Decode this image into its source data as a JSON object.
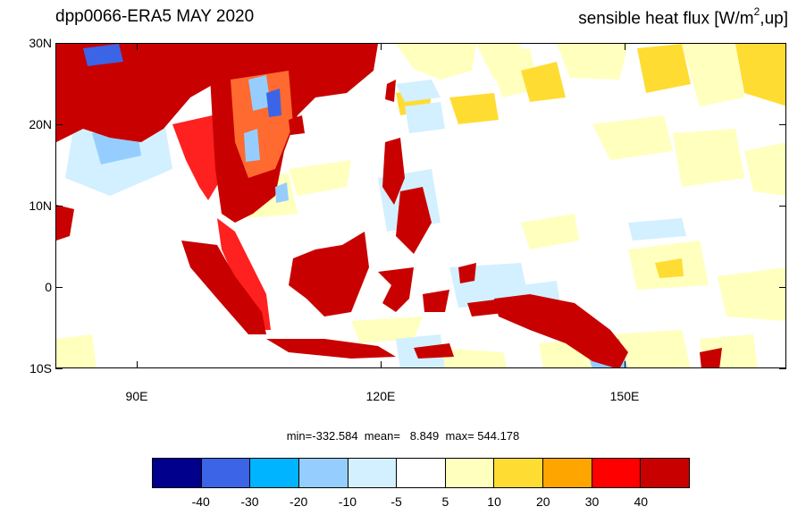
{
  "title_left": "dpp0066-ERA5  MAY 2020",
  "title_right": {
    "prefix": "sensible heat flux [W/m",
    "sup": "2",
    "suffix": ",up]"
  },
  "lat_labels": [
    "30N",
    "20N",
    "10N",
    "0",
    "10S"
  ],
  "lon_labels": [
    "90E",
    "120E",
    "150E"
  ],
  "stats": "min=-332.584  mean=   8.849  max= 544.178",
  "colorbar": {
    "colors": [
      "#00008c",
      "#3c64e6",
      "#00b4ff",
      "#96cdff",
      "#d2f0ff",
      "#ffffff",
      "#ffffbe",
      "#ffdc32",
      "#ffa500",
      "#ff0000",
      "#c80000"
    ],
    "labels": [
      "-40",
      "-30",
      "-20",
      "-10",
      "-5",
      "5",
      "10",
      "20",
      "30",
      "40"
    ]
  },
  "map_colors": {
    "ocean": "#ffffff",
    "land_hot": "#c80000",
    "land_warm": "#ff2020",
    "pale_yellow": "#ffffbe",
    "yellow": "#ffdc32",
    "pale_blue": "#d2f0ff",
    "light_blue": "#96cdff",
    "blue": "#3c64e6"
  }
}
